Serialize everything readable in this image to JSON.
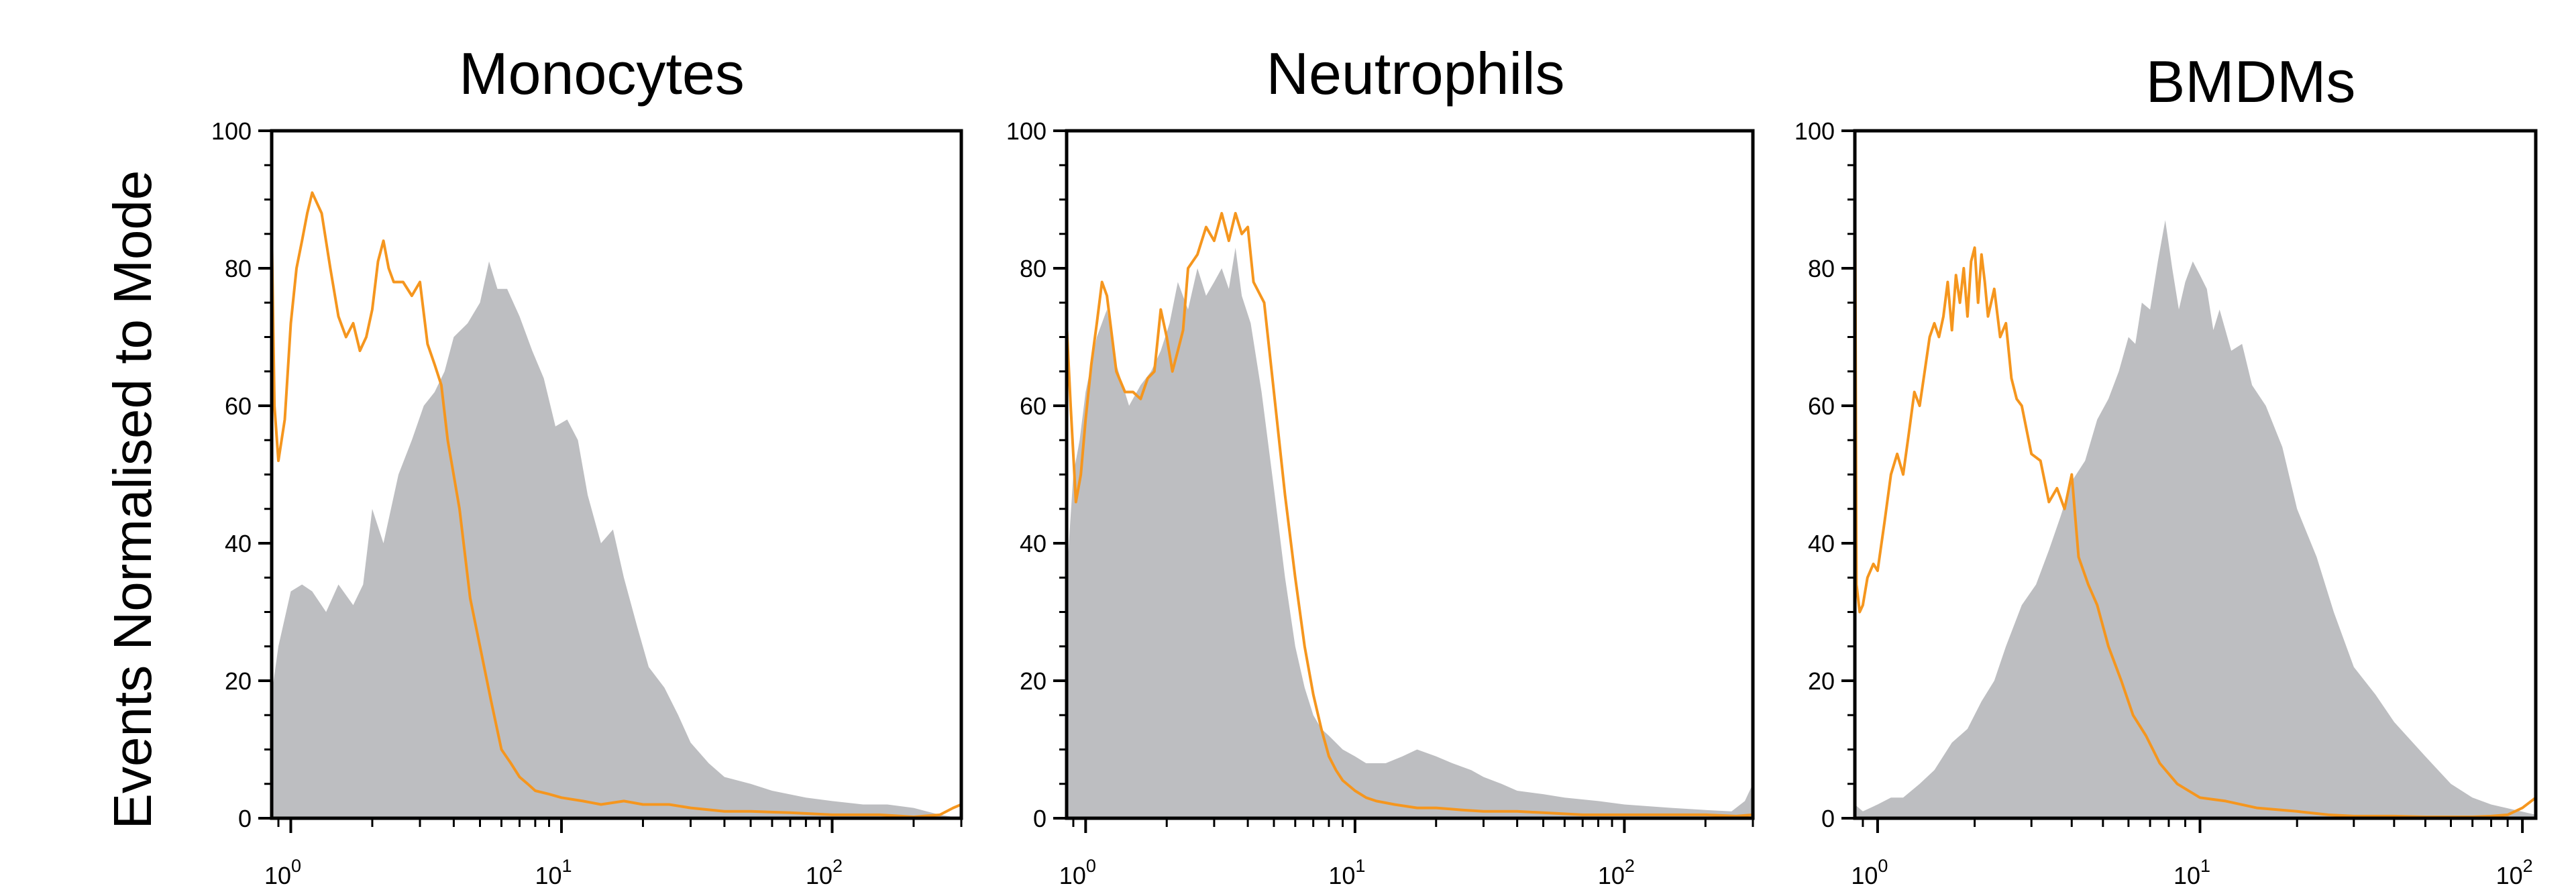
{
  "figure": {
    "ylabel": "Events Normalised to Mode",
    "colors": {
      "isotype_line": "#F5961E",
      "stain_fill": "#BDBEC1",
      "axis": "#000000"
    }
  },
  "chart_data": [
    {
      "type": "area",
      "title": "Monocytes",
      "xscale": "log",
      "xlim": [
        0.85,
        300
      ],
      "ylim": [
        0,
        100
      ],
      "yticks": [
        "0",
        "20",
        "40",
        "60",
        "80",
        "100"
      ],
      "xticks": [
        {
          "base": "10",
          "exp": "0"
        },
        {
          "base": "10",
          "exp": "1"
        },
        {
          "base": "10",
          "exp": "2"
        }
      ],
      "series": [
        {
          "kind": "fill",
          "color": "#BDBEC1",
          "x": [
            0.85,
            0.9,
            1.0,
            1.1,
            1.2,
            1.35,
            1.5,
            1.7,
            1.85,
            2.0,
            2.2,
            2.5,
            2.8,
            3.1,
            3.4,
            3.7,
            4.0,
            4.5,
            5.0,
            5.4,
            5.8,
            6.3,
            7.0,
            7.8,
            8.6,
            9.5,
            10.5,
            11.5,
            12.5,
            14,
            15.5,
            17,
            19,
            21,
            24,
            27,
            30,
            35,
            40,
            50,
            60,
            80,
            100,
            130,
            160,
            200,
            250,
            300
          ],
          "y": [
            18,
            25,
            33,
            34,
            33,
            30,
            34,
            31,
            34,
            45,
            40,
            50,
            55,
            60,
            62,
            65,
            70,
            72,
            75,
            81,
            77,
            77,
            73,
            68,
            64,
            57,
            58,
            55,
            47,
            40,
            42,
            35,
            28,
            22,
            19,
            15,
            11,
            8,
            6,
            5,
            4,
            3,
            2.5,
            2,
            2,
            1.5,
            0.5,
            0
          ]
        },
        {
          "kind": "line",
          "color": "#F5961E",
          "x": [
            0.85,
            0.87,
            0.9,
            0.95,
            1.0,
            1.05,
            1.1,
            1.15,
            1.2,
            1.3,
            1.4,
            1.5,
            1.6,
            1.7,
            1.8,
            1.9,
            2.0,
            2.1,
            2.2,
            2.3,
            2.4,
            2.6,
            2.8,
            3.0,
            3.2,
            3.4,
            3.6,
            3.8,
            4.2,
            4.6,
            5.0,
            5.5,
            6.0,
            6.5,
            7.0,
            7.5,
            8.0,
            9.0,
            10,
            12,
            14,
            17,
            20,
            25,
            30,
            40,
            50,
            70,
            100,
            150,
            200,
            250,
            280,
            300
          ],
          "y": [
            86,
            60,
            52,
            58,
            72,
            80,
            84,
            88,
            91,
            88,
            80,
            73,
            70,
            72,
            68,
            70,
            74,
            81,
            84,
            80,
            78,
            78,
            76,
            78,
            69,
            66,
            63,
            55,
            45,
            32,
            25,
            17,
            10,
            8,
            6,
            5,
            4,
            3.5,
            3,
            2.5,
            2,
            2.5,
            2,
            2,
            1.5,
            1,
            1,
            0.8,
            0.5,
            0.5,
            0.2,
            0.5,
            1.5,
            2
          ]
        }
      ]
    },
    {
      "type": "area",
      "title": "Neutrophils",
      "xscale": "log",
      "xlim": [
        0.85,
        300
      ],
      "ylim": [
        0,
        100
      ],
      "yticks": [
        "0",
        "20",
        "40",
        "60",
        "80",
        "100"
      ],
      "xticks": [
        {
          "base": "10",
          "exp": "0"
        },
        {
          "base": "10",
          "exp": "1"
        },
        {
          "base": "10",
          "exp": "2"
        }
      ],
      "series": [
        {
          "kind": "fill",
          "color": "#BDBEC1",
          "x": [
            0.85,
            0.9,
            0.95,
            1.0,
            1.1,
            1.2,
            1.3,
            1.45,
            1.6,
            1.75,
            1.9,
            2.05,
            2.2,
            2.4,
            2.6,
            2.8,
            3.0,
            3.2,
            3.4,
            3.6,
            3.8,
            4.1,
            4.5,
            5.0,
            5.5,
            6.0,
            6.5,
            7.0,
            7.5,
            8.0,
            9.0,
            10,
            11,
            13,
            15,
            17,
            20,
            23,
            27,
            30,
            35,
            40,
            50,
            60,
            80,
            100,
            150,
            200,
            250,
            280,
            300
          ],
          "y": [
            35,
            50,
            55,
            62,
            70,
            74,
            66,
            60,
            63,
            65,
            68,
            72,
            78,
            74,
            80,
            76,
            78,
            80,
            77,
            83,
            76,
            72,
            62,
            48,
            35,
            25,
            19,
            15,
            13,
            12,
            10,
            9,
            8,
            8,
            9,
            10,
            9,
            8,
            7,
            6,
            5,
            4,
            3.5,
            3,
            2.5,
            2,
            1.5,
            1.2,
            1,
            2.5,
            5
          ]
        },
        {
          "kind": "line",
          "color": "#F5961E",
          "x": [
            0.85,
            0.88,
            0.92,
            0.96,
            1.0,
            1.05,
            1.1,
            1.15,
            1.2,
            1.3,
            1.4,
            1.5,
            1.6,
            1.7,
            1.8,
            1.9,
            2.0,
            2.1,
            2.2,
            2.3,
            2.4,
            2.6,
            2.8,
            3.0,
            3.2,
            3.4,
            3.6,
            3.8,
            4.0,
            4.2,
            4.6,
            5.0,
            5.5,
            6.0,
            6.5,
            7.0,
            7.5,
            8.0,
            8.5,
            9.0,
            10,
            11,
            12,
            14,
            17,
            20,
            25,
            30,
            40,
            50,
            70,
            100,
            150,
            200,
            260,
            300
          ],
          "y": [
            72,
            60,
            46,
            50,
            58,
            66,
            72,
            78,
            76,
            65,
            62,
            62,
            61,
            64,
            65,
            74,
            70,
            65,
            68,
            71,
            80,
            82,
            86,
            84,
            88,
            84,
            88,
            85,
            86,
            78,
            75,
            62,
            47,
            35,
            25,
            18,
            13,
            9,
            7,
            5.5,
            4,
            3,
            2.5,
            2,
            1.5,
            1.5,
            1.2,
            1,
            1,
            0.8,
            0.5,
            0.5,
            0.5,
            0.5,
            0.3,
            0.5
          ]
        }
      ]
    },
    {
      "type": "area",
      "title": "BMDMs",
      "xscale": "log",
      "xlim": [
        0.85,
        110
      ],
      "ylim": [
        0,
        100
      ],
      "yticks": [
        "0",
        "20",
        "40",
        "60",
        "80",
        "100"
      ],
      "xticks": [
        {
          "base": "10",
          "exp": "0"
        },
        {
          "base": "10",
          "exp": "1"
        },
        {
          "base": "10",
          "exp": "2"
        }
      ],
      "series": [
        {
          "kind": "fill",
          "color": "#BDBEC1",
          "x": [
            0.85,
            0.9,
            1.0,
            1.1,
            1.2,
            1.35,
            1.5,
            1.7,
            1.9,
            2.1,
            2.3,
            2.5,
            2.8,
            3.1,
            3.4,
            3.7,
            4.0,
            4.4,
            4.8,
            5.2,
            5.6,
            6.0,
            6.3,
            6.6,
            7.0,
            7.4,
            7.8,
            8.2,
            8.6,
            9.0,
            9.5,
            10,
            10.5,
            11,
            11.5,
            12.5,
            13.5,
            14.5,
            16,
            18,
            20,
            23,
            26,
            30,
            35,
            40,
            50,
            60,
            70,
            80,
            95,
            110
          ],
          "y": [
            2,
            1,
            2,
            3,
            3,
            5,
            7,
            11,
            13,
            17,
            20,
            25,
            31,
            34,
            39,
            44,
            49,
            52,
            58,
            61,
            65,
            70,
            69,
            75,
            74,
            81,
            87,
            80,
            74,
            78,
            81,
            79,
            77,
            71,
            74,
            68,
            69,
            63,
            60,
            54,
            45,
            38,
            30,
            22,
            18,
            14,
            9,
            5,
            3,
            2,
            1.2,
            0.5
          ]
        },
        {
          "kind": "line",
          "color": "#F5961E",
          "x": [
            0.85,
            0.86,
            0.88,
            0.9,
            0.93,
            0.97,
            1.0,
            1.05,
            1.1,
            1.15,
            1.2,
            1.25,
            1.3,
            1.35,
            1.4,
            1.45,
            1.5,
            1.55,
            1.6,
            1.65,
            1.7,
            1.75,
            1.8,
            1.85,
            1.9,
            1.95,
            2.0,
            2.05,
            2.1,
            2.15,
            2.2,
            2.3,
            2.4,
            2.5,
            2.6,
            2.7,
            2.8,
            3.0,
            3.2,
            3.4,
            3.6,
            3.8,
            4.0,
            4.2,
            4.5,
            4.8,
            5.2,
            5.7,
            6.2,
            6.8,
            7.5,
            8.5,
            10,
            12,
            15,
            20,
            25,
            30,
            40,
            50,
            60,
            70,
            80,
            90,
            100,
            110
          ],
          "y": [
            100,
            34,
            30,
            31,
            35,
            37,
            36,
            43,
            50,
            53,
            50,
            56,
            62,
            60,
            65,
            70,
            72,
            70,
            73,
            78,
            71,
            79,
            75,
            80,
            73,
            81,
            83,
            75,
            82,
            78,
            73,
            77,
            70,
            72,
            64,
            61,
            60,
            53,
            52,
            46,
            48,
            45,
            50,
            38,
            34,
            31,
            25,
            20,
            15,
            12,
            8,
            5,
            3,
            2.5,
            1.5,
            1,
            0.5,
            0.3,
            0.3,
            0.2,
            0.2,
            0.2,
            0.3,
            0.5,
            1.5,
            3
          ]
        }
      ]
    }
  ]
}
